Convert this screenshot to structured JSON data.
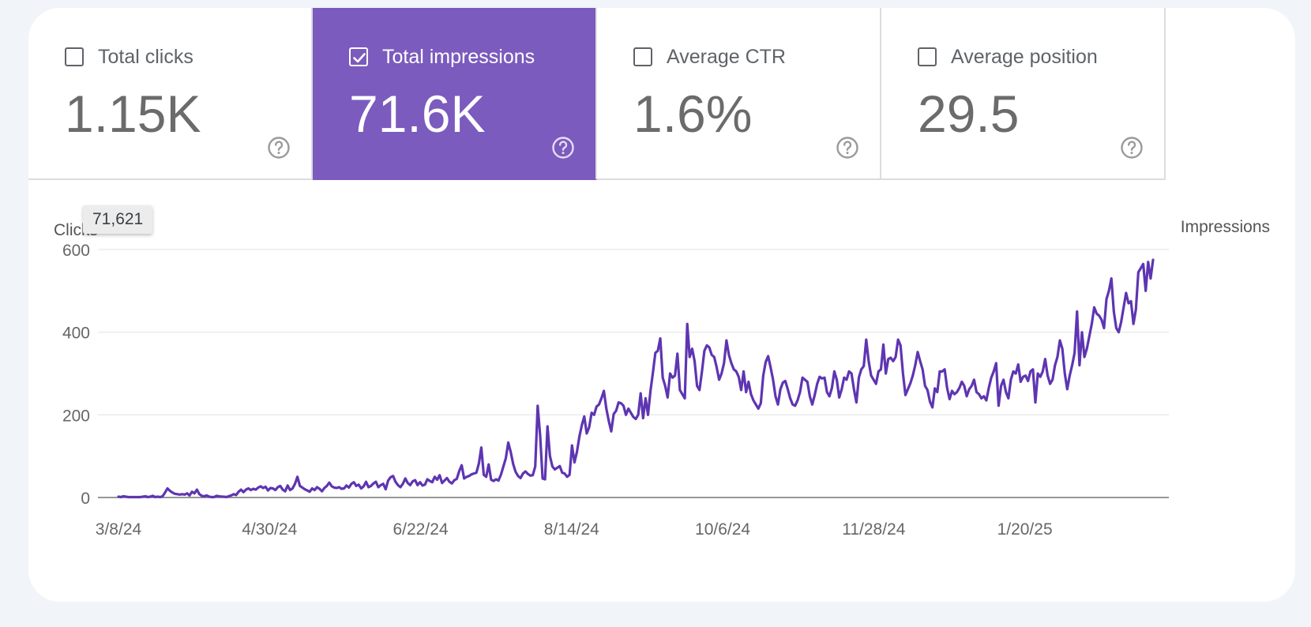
{
  "metrics": [
    {
      "label": "Total clicks",
      "value": "1.15K",
      "checked": false
    },
    {
      "label": "Total impressions",
      "value": "71.6K",
      "checked": true
    },
    {
      "label": "Average CTR",
      "value": "1.6%",
      "checked": false
    },
    {
      "label": "Average position",
      "value": "29.5",
      "checked": false
    }
  ],
  "colors": {
    "accent": "#7b5bbd",
    "line": "#5e35b1",
    "grid": "#e6e6e6",
    "axis_text": "#666666"
  },
  "icons": {
    "help": "help-circle-icon",
    "check": "checkmark-icon"
  },
  "tooltip": {
    "text": "71,621"
  },
  "chart_data": {
    "type": "line",
    "left_axis_label": "Clicks",
    "right_axis_label": "Impressions",
    "y_ticks": [
      0,
      200,
      400,
      600
    ],
    "ylim": [
      0,
      600
    ],
    "x_tick_labels": [
      "3/8/24",
      "4/30/24",
      "6/22/24",
      "8/14/24",
      "10/6/24",
      "11/28/24",
      "1/20/25"
    ],
    "x_start": "3/8/24",
    "x_end": "3/6/25",
    "grid": true,
    "series": [
      {
        "values": [
          2,
          1,
          3,
          2,
          1,
          1,
          1,
          1,
          1,
          1,
          2,
          3,
          1,
          2,
          4,
          1,
          2,
          1,
          3,
          12,
          22,
          16,
          12,
          9,
          8,
          7,
          8,
          7,
          10,
          5,
          14,
          10,
          19,
          8,
          4,
          3,
          5,
          2,
          1,
          1,
          4,
          3,
          2,
          2,
          1,
          3,
          5,
          8,
          6,
          14,
          19,
          13,
          19,
          22,
          18,
          21,
          19,
          24,
          27,
          23,
          26,
          17,
          23,
          22,
          18,
          25,
          28,
          19,
          15,
          29,
          18,
          22,
          33,
          50,
          28,
          24,
          20,
          17,
          14,
          22,
          18,
          25,
          21,
          15,
          23,
          28,
          36,
          27,
          24,
          23,
          25,
          21,
          22,
          29,
          24,
          33,
          37,
          28,
          31,
          22,
          27,
          38,
          25,
          28,
          34,
          38,
          25,
          30,
          33,
          20,
          41,
          49,
          52,
          38,
          30,
          25,
          33,
          46,
          35,
          30,
          39,
          42,
          30,
          37,
          29,
          31,
          44,
          40,
          37,
          50,
          43,
          54,
          35,
          41,
          47,
          38,
          34,
          42,
          45,
          64,
          78,
          46,
          50,
          52,
          56,
          58,
          60,
          82,
          121,
          55,
          50,
          80,
          43,
          40,
          44,
          41,
          55,
          75,
          95,
          133,
          110,
          81,
          62,
          52,
          47,
          58,
          63,
          57,
          53,
          54,
          75,
          222,
          150,
          46,
          44,
          172,
          100,
          75,
          68,
          72,
          76,
          60,
          58,
          50,
          55,
          126,
          85,
          110,
          147,
          175,
          196,
          155,
          170,
          205,
          200,
          220,
          225,
          240,
          258,
          215,
          185,
          160,
          202,
          210,
          230,
          228,
          222,
          200,
          215,
          205,
          195,
          190,
          200,
          252,
          192,
          240,
          200,
          258,
          302,
          350,
          355,
          385,
          290,
          270,
          242,
          300,
          290,
          295,
          348,
          260,
          250,
          240,
          420,
          340,
          360,
          330,
          270,
          260,
          305,
          355,
          368,
          363,
          345,
          340,
          315,
          285,
          300,
          325,
          380,
          345,
          325,
          310,
          305,
          292,
          260,
          305,
          255,
          280,
          250,
          235,
          225,
          215,
          228,
          295,
          328,
          342,
          315,
          285,
          245,
          225,
          262,
          278,
          282,
          262,
          240,
          225,
          222,
          235,
          255,
          290,
          285,
          280,
          245,
          225,
          248,
          275,
          292,
          288,
          290,
          255,
          245,
          265,
          305,
          285,
          242,
          262,
          290,
          285,
          305,
          300,
          262,
          230,
          290,
          310,
          318,
          382,
          330,
          295,
          285,
          275,
          305,
          310,
          370,
          300,
          335,
          338,
          330,
          340,
          382,
          368,
          300,
          248,
          262,
          276,
          295,
          320,
          352,
          330,
          310,
          270,
          260,
          232,
          218,
          264,
          255,
          305,
          305,
          310,
          265,
          238,
          258,
          250,
          255,
          265,
          280,
          270,
          245,
          262,
          270,
          285,
          255,
          250,
          240,
          245,
          235,
          265,
          290,
          305,
          325,
          222,
          270,
          285,
          255,
          240,
          285,
          305,
          300,
          322,
          280,
          292,
          295,
          282,
          305,
          310,
          230,
          300,
          292,
          305,
          335,
          295,
          275,
          285,
          320,
          340,
          380,
          360,
          300,
          262,
          295,
          320,
          350,
          450,
          320,
          400,
          340,
          360,
          390,
          420,
          460,
          445,
          440,
          430,
          410,
          480,
          500,
          530,
          450,
          410,
          400,
          425,
          460,
          495,
          470,
          475,
          420,
          455,
          545,
          555,
          565,
          500,
          570,
          530,
          575
        ]
      }
    ]
  }
}
